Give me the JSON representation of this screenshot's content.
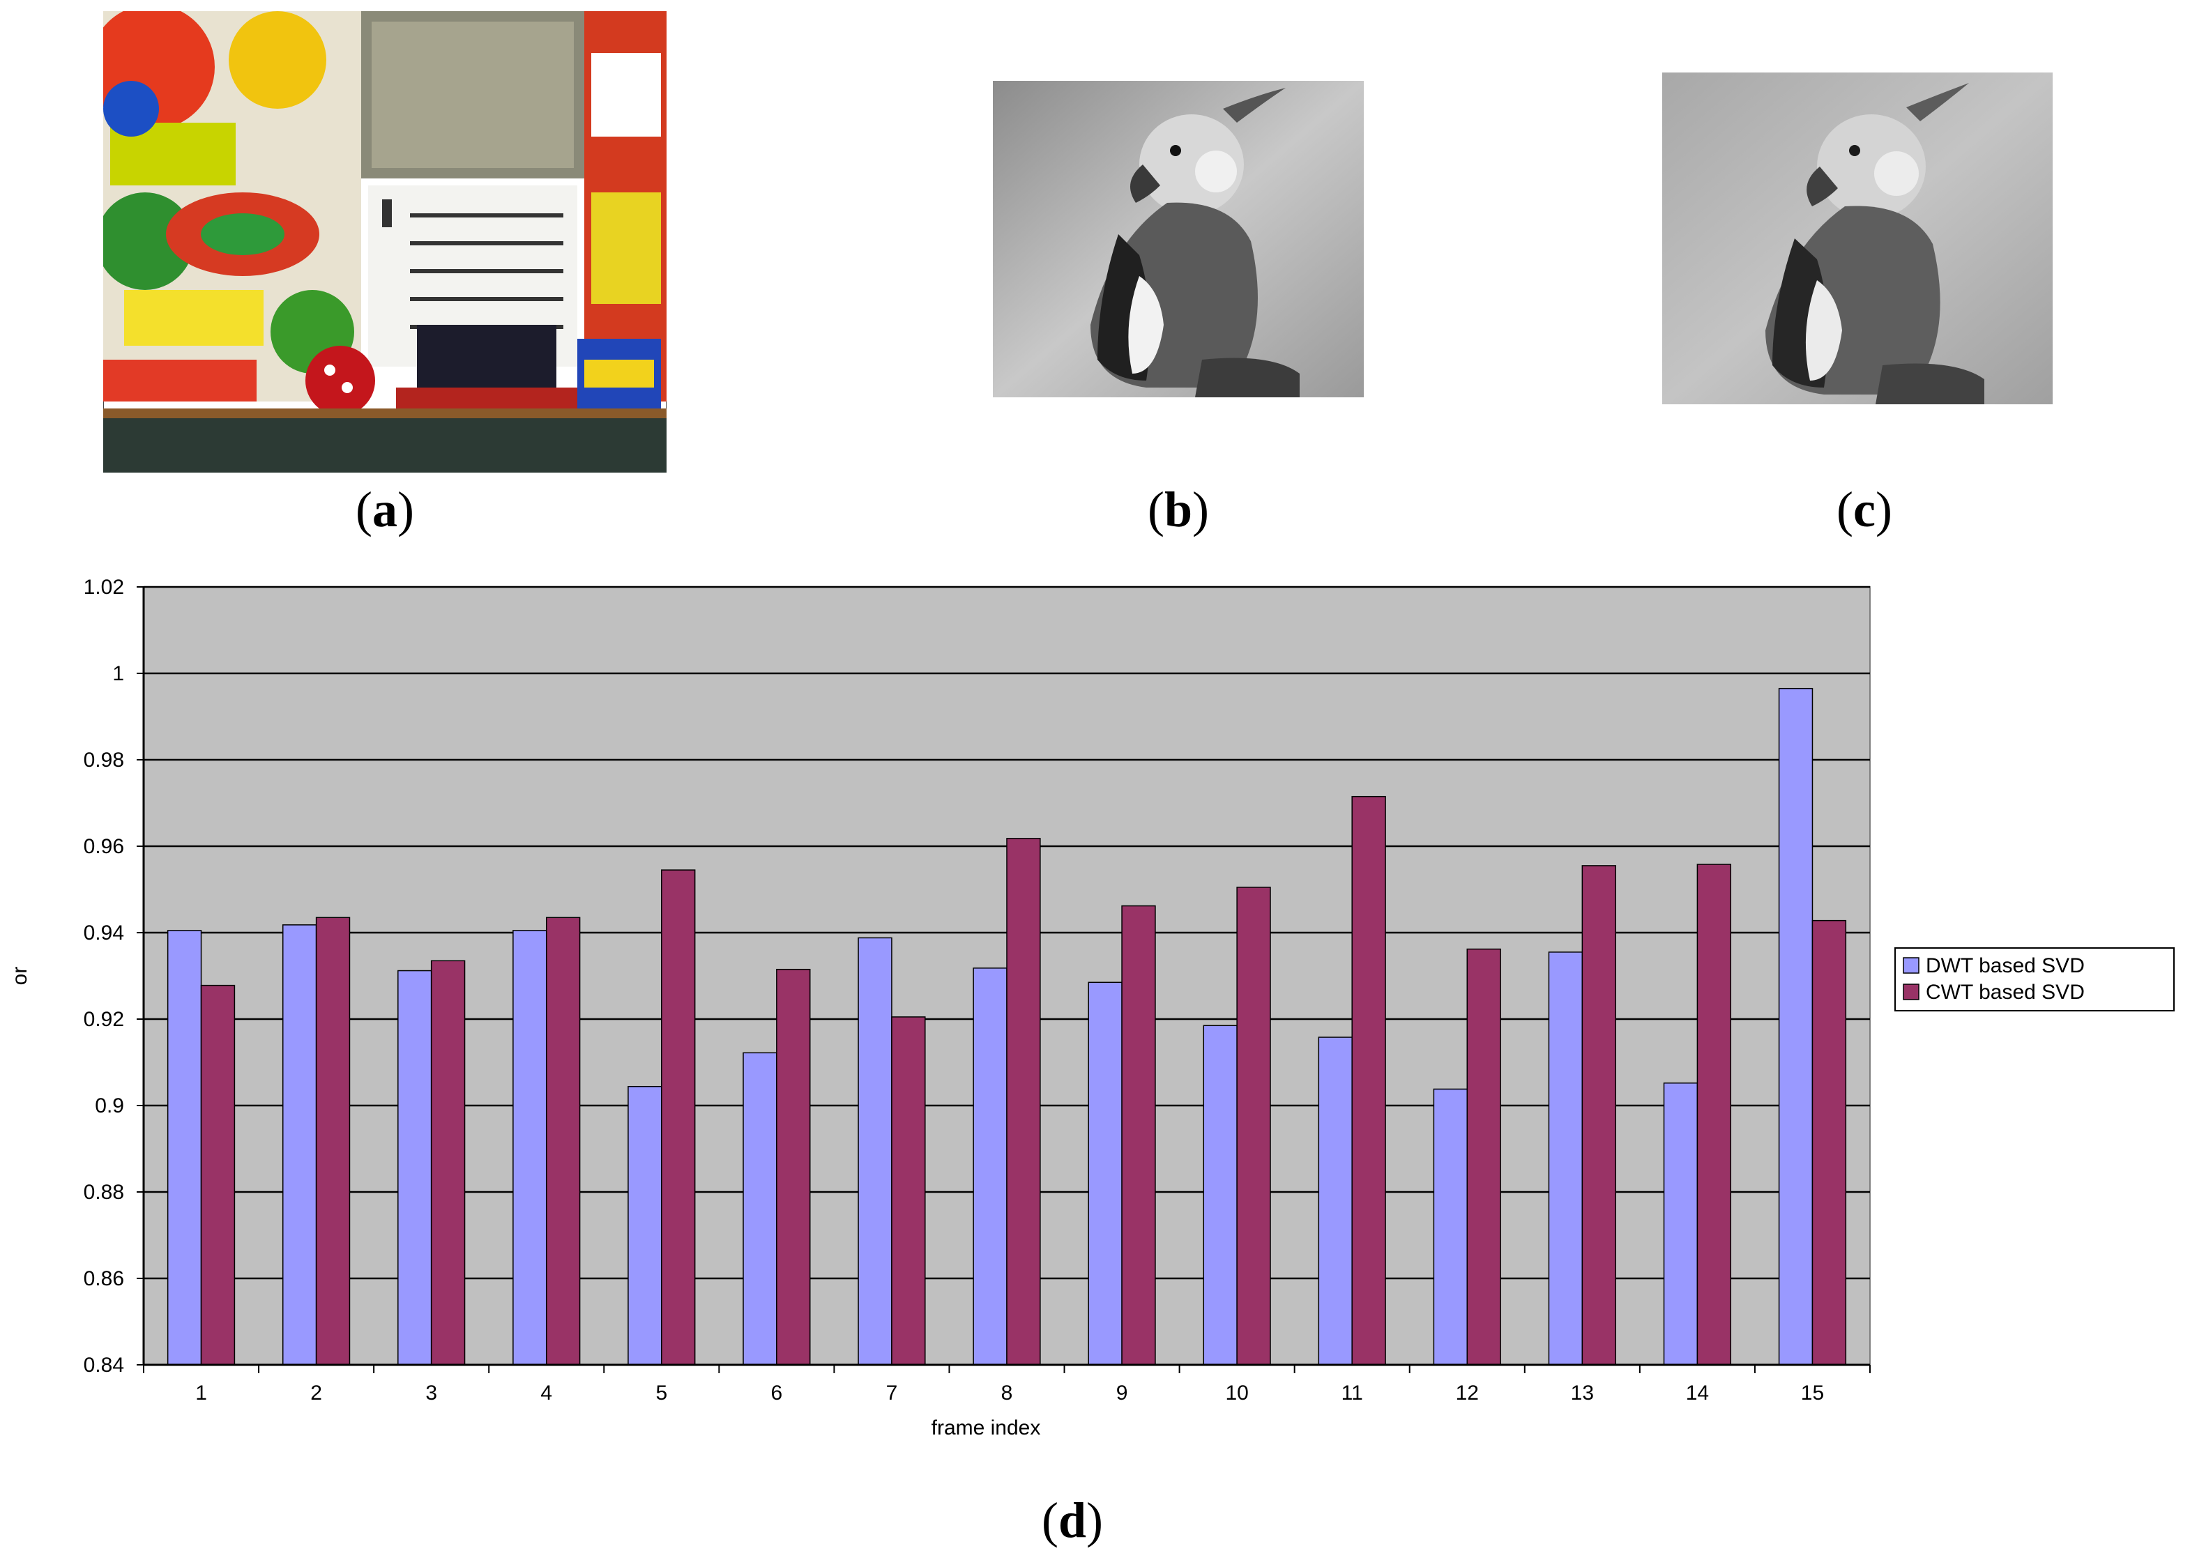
{
  "captions": {
    "a_letter": "a",
    "b_letter": "b",
    "c_letter": "c",
    "d_letter": "d"
  },
  "images": {
    "a": "color-test-image-calendar-train",
    "b": "grayscale-parrot-original",
    "c": "grayscale-parrot-reconstructed"
  },
  "colors": {
    "plot_background": "#c0c0c0",
    "dwt": "#9999ff",
    "cwt": "#993366"
  },
  "chart_data": {
    "type": "bar",
    "title": "",
    "xlabel": "frame index",
    "ylabel": "or",
    "ylim": [
      0.84,
      1.02
    ],
    "yticks": [
      "0.84",
      "0.86",
      "0.88",
      "0.9",
      "0.92",
      "0.94",
      "0.96",
      "0.98",
      "1",
      "1.02"
    ],
    "categories": [
      "1",
      "2",
      "3",
      "4",
      "5",
      "6",
      "7",
      "8",
      "9",
      "10",
      "11",
      "12",
      "13",
      "14",
      "15"
    ],
    "grid": true,
    "legend_position": "right",
    "series": [
      {
        "name": "DWT based SVD",
        "values": [
          0.9405,
          0.9418,
          0.9312,
          0.9405,
          0.9044,
          0.9122,
          0.9388,
          0.9318,
          0.9285,
          0.9185,
          0.9158,
          0.9038,
          0.9355,
          0.9052,
          0.9965
        ]
      },
      {
        "name": "CWT based SVD",
        "values": [
          0.9278,
          0.9435,
          0.9335,
          0.9435,
          0.9545,
          0.9315,
          0.9205,
          0.9618,
          0.9462,
          0.9505,
          0.9715,
          0.9362,
          0.9555,
          0.9558,
          0.9428
        ]
      }
    ]
  }
}
